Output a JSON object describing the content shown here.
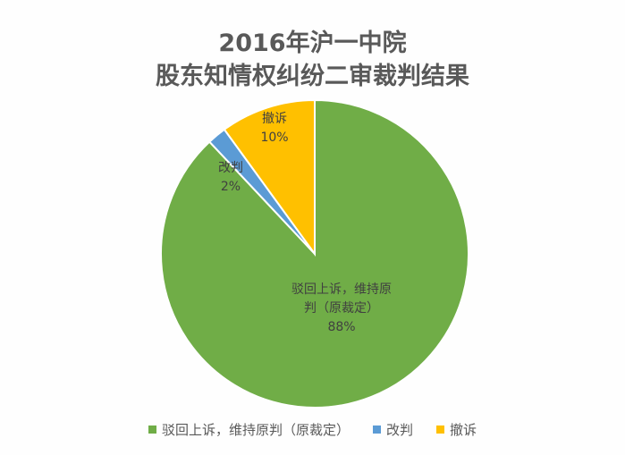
{
  "chart_data": {
    "type": "pie",
    "title": [
      "2016年沪一中院",
      "股东知情权纠纷二审裁判结果"
    ],
    "slices": [
      {
        "key": "affirmed",
        "label": "驳回上诉，维持原判（原裁定）",
        "slice_label_lines": [
          "驳回上诉，维持原",
          "判（原裁定）"
        ],
        "value": 88,
        "value_label": "88%",
        "color": "#70ad47"
      },
      {
        "key": "revised",
        "label": "改判",
        "slice_label_lines": [
          "改判"
        ],
        "value": 2,
        "value_label": "2%",
        "color": "#5b9bd5"
      },
      {
        "key": "withdrawn",
        "label": "撤诉",
        "slice_label_lines": [
          "撤诉"
        ],
        "value": 10,
        "value_label": "10%",
        "color": "#ffc000"
      }
    ],
    "legend_position": "bottom"
  }
}
